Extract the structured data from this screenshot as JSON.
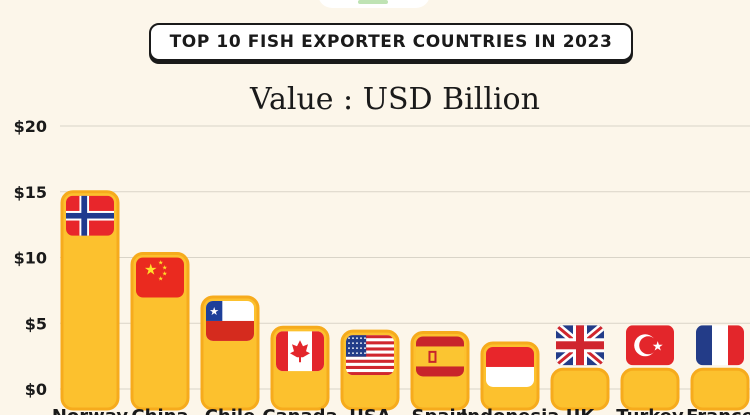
{
  "title": "TOP 10 FISH EXPORTER COUNTRIES IN 2023",
  "subtitle": "Value : USD Billion",
  "colors": {
    "background": "#fcf6ea",
    "bar": "#fcc12e",
    "bar_border": "#f6ab1d",
    "grid": "#d9d4c8"
  },
  "chart_data": {
    "type": "bar",
    "title": "TOP 10 FISH EXPORTER COUNTRIES IN 2023",
    "subtitle": "Value : USD Billion",
    "ylim": [
      0,
      20
    ],
    "yticks": [
      0,
      5,
      10,
      15,
      20
    ],
    "ytick_labels": [
      "$0",
      "$5",
      "$10",
      "$15",
      "$20"
    ],
    "grid": true,
    "categories": [
      "Norway",
      "China",
      "Chile",
      "Canada",
      "USA",
      "Spain",
      "Indonesia",
      "UK",
      "Turkey",
      "France"
    ],
    "values": [
      15.0,
      10.3,
      7.0,
      4.7,
      4.4,
      4.3,
      3.5,
      1.5,
      1.5,
      1.5
    ],
    "flags": [
      "norway-flag",
      "china-flag",
      "chile-flag",
      "canada-flag",
      "usa-flag",
      "spain-flag",
      "indonesia-flag",
      "uk-flag",
      "turkey-flag",
      "france-flag"
    ]
  }
}
